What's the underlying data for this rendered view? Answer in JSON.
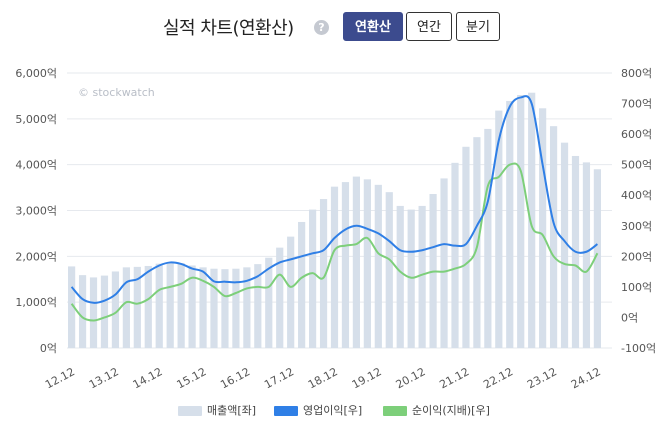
{
  "header": {
    "title": "실적 차트(연환산)",
    "help_glyph": "?",
    "buttons": [
      "연환산",
      "연간",
      "분기"
    ],
    "active_button": "연환산"
  },
  "watermark": "© stockwatch",
  "chart_data": {
    "type": "bar+line",
    "x_tick_labels": [
      "12.12",
      "13.12",
      "14.12",
      "15.12",
      "16.12",
      "17.12",
      "18.12",
      "19.12",
      "20.12",
      "21.12",
      "22.12",
      "23.12",
      "24.12"
    ],
    "left_axis": {
      "ticks": [
        "0억",
        "1,000억",
        "2,000억",
        "3,000억",
        "4,000억",
        "5,000억",
        "6,000억"
      ],
      "ylim": [
        0,
        6000
      ]
    },
    "right_axis": {
      "ticks": [
        "-100억",
        "0억",
        "100억",
        "200억",
        "300억",
        "400억",
        "500억",
        "600억",
        "700억",
        "800억"
      ],
      "ylim": [
        -100,
        800
      ]
    },
    "grid": true,
    "legend_position": "bottom",
    "series": [
      {
        "name": "매출액[좌]",
        "type": "bar",
        "axis": "left",
        "color": "#d6dfea",
        "values": [
          1780,
          1590,
          1540,
          1580,
          1670,
          1760,
          1770,
          1790,
          1840,
          1860,
          1850,
          1800,
          1760,
          1730,
          1720,
          1730,
          1760,
          1830,
          1970,
          2190,
          2430,
          2750,
          3020,
          3250,
          3520,
          3620,
          3740,
          3680,
          3560,
          3400,
          3100,
          3020,
          3100,
          3360,
          3700,
          4040,
          4390,
          4600,
          4780,
          5180,
          5390,
          5520,
          5570,
          5230,
          4840,
          4480,
          4190,
          4050,
          3900
        ]
      },
      {
        "name": "영업이익[우]",
        "type": "line",
        "axis": "right",
        "color": "#2f7fe6",
        "values": [
          100,
          60,
          48,
          55,
          75,
          115,
          125,
          150,
          170,
          180,
          175,
          160,
          150,
          118,
          117,
          115,
          120,
          135,
          160,
          180,
          190,
          200,
          210,
          220,
          260,
          288,
          300,
          290,
          275,
          250,
          220,
          215,
          220,
          230,
          240,
          235,
          240,
          300,
          380,
          580,
          690,
          720,
          700,
          500,
          310,
          250,
          215,
          215,
          240
        ]
      },
      {
        "name": "순이익(지배)[우]",
        "type": "line",
        "axis": "right",
        "color": "#7dcf7a",
        "values": [
          45,
          0,
          -10,
          0,
          15,
          50,
          45,
          60,
          90,
          100,
          110,
          130,
          120,
          100,
          70,
          80,
          95,
          100,
          100,
          140,
          100,
          130,
          145,
          130,
          220,
          235,
          240,
          260,
          210,
          190,
          150,
          130,
          140,
          150,
          150,
          160,
          175,
          230,
          430,
          460,
          500,
          480,
          300,
          270,
          200,
          175,
          170,
          150,
          210
        ]
      }
    ]
  }
}
